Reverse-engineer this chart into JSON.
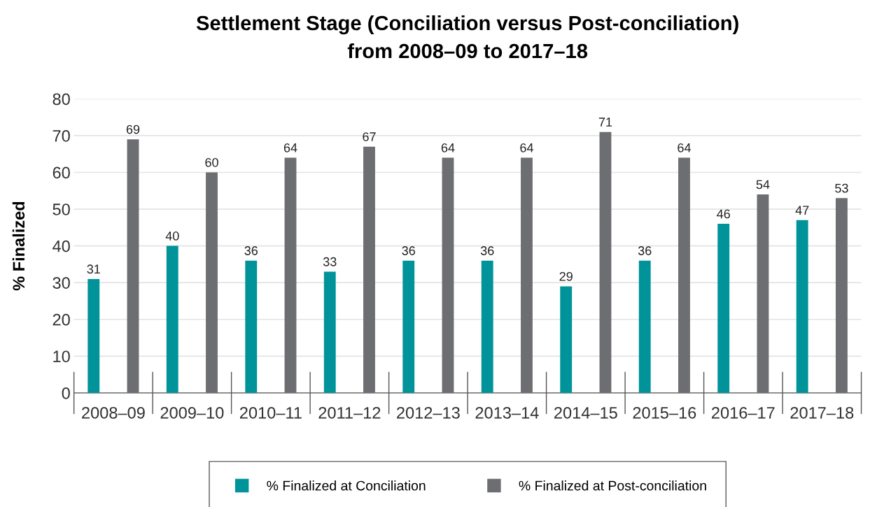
{
  "chart_data": {
    "type": "bar",
    "title": "Settlement Stage (Conciliation versus Post-conciliation)\nfrom 2008–09 to 2017–18",
    "ylabel": "% Finalized",
    "categories": [
      "2008–09",
      "2009–10",
      "2010–11",
      "2011–12",
      "2012–13",
      "2013–14",
      "2014–15",
      "2015–16",
      "2016–17",
      "2017–18"
    ],
    "series": [
      {
        "name": "% Finalized at Conciliation",
        "color": "#00939a",
        "values": [
          31,
          40,
          36,
          33,
          36,
          36,
          29,
          36,
          46,
          47
        ]
      },
      {
        "name": "% Finalized at Post-conciliation",
        "color": "#6d6e71",
        "values": [
          69,
          60,
          64,
          67,
          64,
          64,
          71,
          64,
          54,
          53
        ]
      }
    ],
    "ylim": [
      0,
      80
    ],
    "yticks": [
      0,
      10,
      20,
      30,
      40,
      50,
      60,
      70,
      80
    ],
    "grid": "y",
    "legend": "bottom",
    "data_labels": true
  }
}
